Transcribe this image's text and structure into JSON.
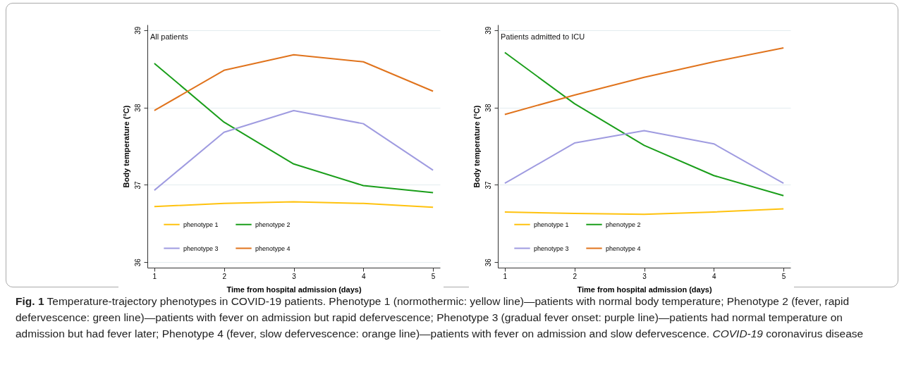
{
  "chart_data": [
    {
      "type": "line",
      "title": "All patients",
      "xlabel": "Time from hospital admission (days)",
      "ylabel": "Body temperature (°C)",
      "x": [
        1,
        2,
        3,
        4,
        5
      ],
      "xlim": [
        0.9,
        5.1
      ],
      "xticks": [
        1,
        2,
        3,
        4,
        5
      ],
      "ylim": [
        35.93,
        39.07
      ],
      "yticks": [
        36,
        37,
        38,
        39
      ],
      "grid": "y",
      "legend": "bottom left",
      "series": [
        {
          "name": "phenotype 1",
          "color": "#ffc20e",
          "values": [
            36.72,
            36.76,
            36.78,
            36.76,
            36.71
          ]
        },
        {
          "name": "phenotype 2",
          "color": "#1a9e1a",
          "values": [
            38.57,
            37.81,
            37.27,
            36.99,
            36.9
          ]
        },
        {
          "name": "phenotype 3",
          "color": "#9f9be0",
          "values": [
            36.93,
            37.68,
            37.96,
            37.79,
            37.19
          ]
        },
        {
          "name": "phenotype 4",
          "color": "#e0731c",
          "values": [
            37.96,
            38.48,
            38.68,
            38.59,
            38.21
          ]
        }
      ],
      "annotations": [
        "Fig. 1 Temperature-trajectory phenotypes in COVID-19 patients. Phenotype 1 (normothermic: yellow line)—patients with normal body temperature; Phenotype 2 (fever, rapid defervescence: green line)—patients with fever on admission but rapid defervescence; Phenotype 3 (gradual fever onset: purple line)—patients had normal temperature on admission but had fever later; Phenotype 4 (fever, slow defervescence: orange line)—patients with fever on admission and slow defervescence. COVID-19 coronavirus disease"
      ]
    },
    {
      "type": "line",
      "title": "Patients admitted to ICU",
      "xlabel": "Time from hospital admission (days)",
      "ylabel": "Body temperature (°C)",
      "x": [
        1,
        2,
        3,
        4,
        5
      ],
      "xlim": [
        0.9,
        5.1
      ],
      "xticks": [
        1,
        2,
        3,
        4,
        5
      ],
      "ylim": [
        35.93,
        39.07
      ],
      "yticks": [
        36,
        37,
        38,
        39
      ],
      "grid": "y",
      "legend": "bottom left",
      "series": [
        {
          "name": "phenotype 1",
          "color": "#ffc20e",
          "values": [
            36.65,
            36.63,
            36.62,
            36.65,
            36.69
          ]
        },
        {
          "name": "phenotype 2",
          "color": "#1a9e1a",
          "values": [
            38.71,
            38.05,
            37.51,
            37.12,
            36.86
          ]
        },
        {
          "name": "phenotype 3",
          "color": "#9f9be0",
          "values": [
            37.02,
            37.54,
            37.7,
            37.53,
            37.02
          ]
        },
        {
          "name": "phenotype 4",
          "color": "#e0731c",
          "values": [
            37.91,
            38.16,
            38.39,
            38.59,
            38.77
          ]
        }
      ]
    }
  ]
}
